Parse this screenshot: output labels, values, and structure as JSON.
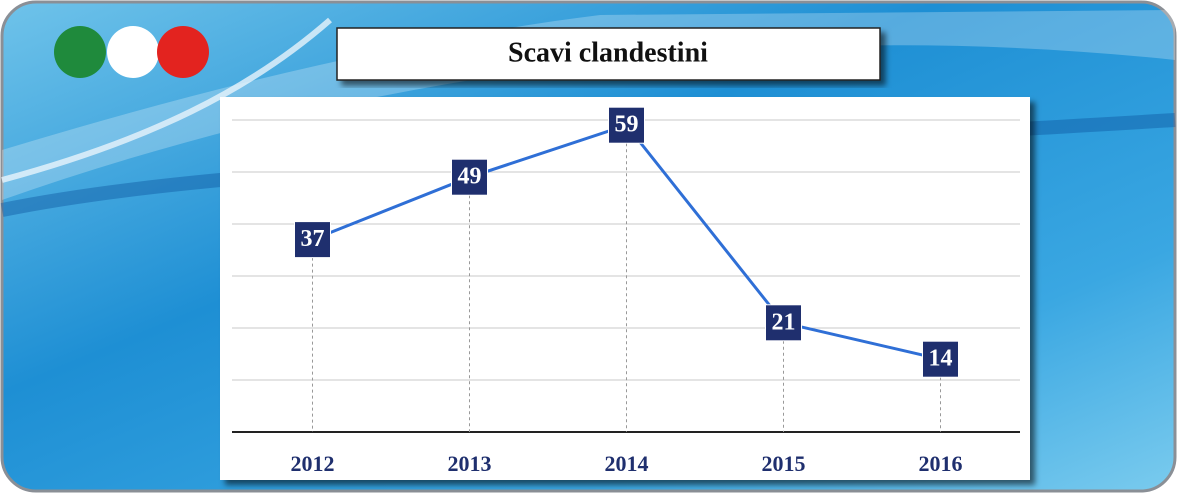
{
  "chart_data": {
    "type": "line",
    "title": "Scavi clandestini",
    "categories": [
      "2012",
      "2013",
      "2014",
      "2015",
      "2016"
    ],
    "values": [
      37,
      49,
      59,
      21,
      14
    ],
    "color": "#2f6fd6",
    "label_color": "#1f2f6e",
    "ylim": [
      0,
      65
    ],
    "yticks": [
      0,
      10,
      20,
      30,
      40,
      50,
      60
    ],
    "grid": true
  }
}
